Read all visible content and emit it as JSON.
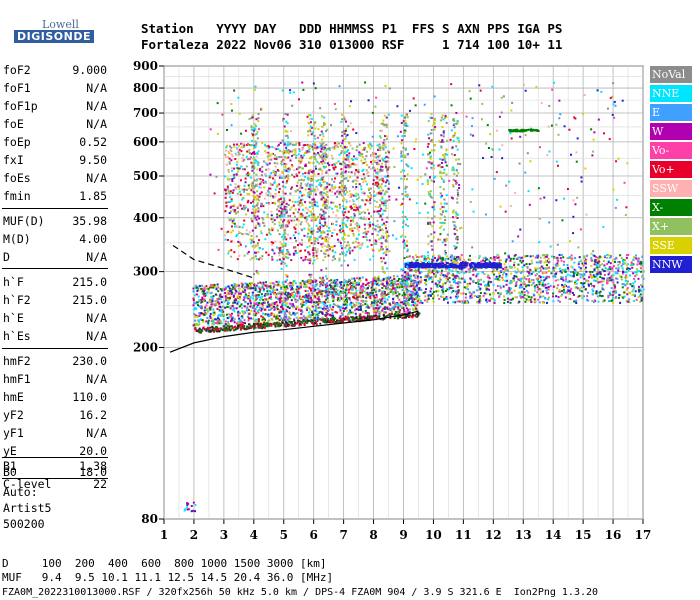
{
  "logo": {
    "top": "Lowell",
    "bottom": "DIGISONDE"
  },
  "header": {
    "line1": "Station   YYYY DAY   DDD HHMMSS P1  FFS S AXN PPS IGA PS",
    "line2": "Fortaleza 2022 Nov06 310 013000 RSF     1 714 100 10+ 11"
  },
  "params": [
    {
      "name": "foF2",
      "value": "9.000"
    },
    {
      "name": "foF1",
      "value": "N/A"
    },
    {
      "name": "foF1p",
      "value": "N/A"
    },
    {
      "name": "foE",
      "value": "N/A"
    },
    {
      "name": "foEp",
      "value": "0.52"
    },
    {
      "name": "fxI",
      "value": "9.50"
    },
    {
      "name": "foEs",
      "value": "N/A"
    },
    {
      "name": "fmin",
      "value": "1.85"
    },
    {
      "name": "MUF(D)",
      "value": "35.98"
    },
    {
      "name": "M(D)",
      "value": "4.00"
    },
    {
      "name": "D",
      "value": "N/A"
    },
    {
      "name": "h`F",
      "value": "215.0"
    },
    {
      "name": "h`F2",
      "value": "215.0"
    },
    {
      "name": "h`E",
      "value": "N/A"
    },
    {
      "name": "h`Es",
      "value": "N/A"
    },
    {
      "name": "hmF2",
      "value": "230.0"
    },
    {
      "name": "hmF1",
      "value": "N/A"
    },
    {
      "name": "hmE",
      "value": "110.0"
    },
    {
      "name": "yF2",
      "value": "16.2"
    },
    {
      "name": "yF1",
      "value": "N/A"
    },
    {
      "name": "yE",
      "value": "20.0"
    },
    {
      "name": "B0",
      "value": "18.0"
    },
    {
      "name": "B1",
      "value": "1.38"
    },
    {
      "name": "C-level",
      "value": "22"
    }
  ],
  "auto": {
    "label": "Auto:",
    "software": "Artist5",
    "code": "500200"
  },
  "legend": [
    {
      "label": "NoVal",
      "color": "#8c8c8c"
    },
    {
      "label": "NNE",
      "color": "#00e5ff"
    },
    {
      "label": "E",
      "color": "#3fa0ff"
    },
    {
      "label": "W",
      "color": "#b000b0"
    },
    {
      "label": "Vo-",
      "color": "#ff3fa8"
    },
    {
      "label": "Vo+",
      "color": "#e8002a"
    },
    {
      "label": "SSW",
      "color": "#ffb0b0"
    },
    {
      "label": "X-",
      "color": "#008000"
    },
    {
      "label": "X+",
      "color": "#90c060"
    },
    {
      "label": "SSE",
      "color": "#d8d000"
    },
    {
      "label": "NNW",
      "color": "#2020d0"
    }
  ],
  "chart_data": {
    "type": "scatter",
    "xlabel": "",
    "ylabel": "",
    "xlim": [
      1,
      17
    ],
    "ylim": [
      80,
      900
    ],
    "y_scale": "log",
    "grid": true,
    "x_ticks": [
      "1",
      "2",
      "3",
      "4",
      "5",
      "6",
      "7",
      "8",
      "9",
      "10",
      "11",
      "12",
      "13",
      "14",
      "15",
      "16",
      "17"
    ],
    "y_ticks": [
      "80",
      "200",
      "300",
      "400",
      "500",
      "600",
      "700",
      "800",
      "900"
    ],
    "trace_lower": {
      "x": [
        1.2,
        2,
        3,
        4,
        5,
        6,
        7,
        8,
        9,
        9.5
      ],
      "y": [
        195,
        205,
        212,
        217,
        220,
        224,
        228,
        232,
        238,
        243
      ]
    },
    "trace_upper": {
      "x": [
        1.3,
        2,
        3,
        4
      ],
      "y": [
        345,
        320,
        305,
        290
      ]
    }
  },
  "footer": {
    "d_line": "D     100  200  400  600  800 1000 1500 3000 [km]",
    "muf_line": "MUF   9.4  9.5 10.1 11.1 12.5 14.5 20.4 36.0 [MHz]",
    "info_line": "FZA0M_2022310013000.RSF / 320fx256h 50 kHz 5.0 km / DPS-4 FZA0M 904 / 3.9 S 321.6 E  Ion2Png 1.3.20"
  }
}
